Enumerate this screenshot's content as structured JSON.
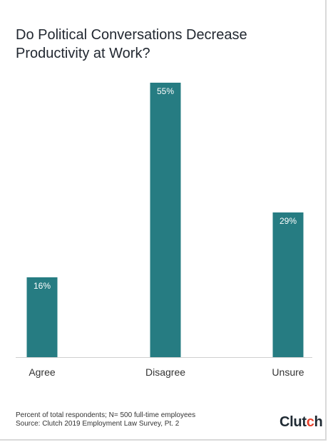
{
  "chart_data": {
    "type": "bar",
    "title": "Do Political Conversations Decrease Productivity at Work?",
    "categories": [
      "Agree",
      "Disagree",
      "Unsure"
    ],
    "values": [
      16,
      55,
      29
    ],
    "value_labels": [
      "16%",
      "55%",
      "29%"
    ],
    "ylim": [
      0,
      55
    ],
    "grid": false,
    "color": "#267c82"
  },
  "footnote": {
    "line1": "Percent of total respondents; N= 500 full-time employees",
    "line2": "Source: Clutch 2019 Employment Law Survey, Pt. 2"
  },
  "logo": {
    "text_main": "Clut",
    "text_accent": "c",
    "text_end": "h",
    "accent_color": "#e8412c"
  }
}
